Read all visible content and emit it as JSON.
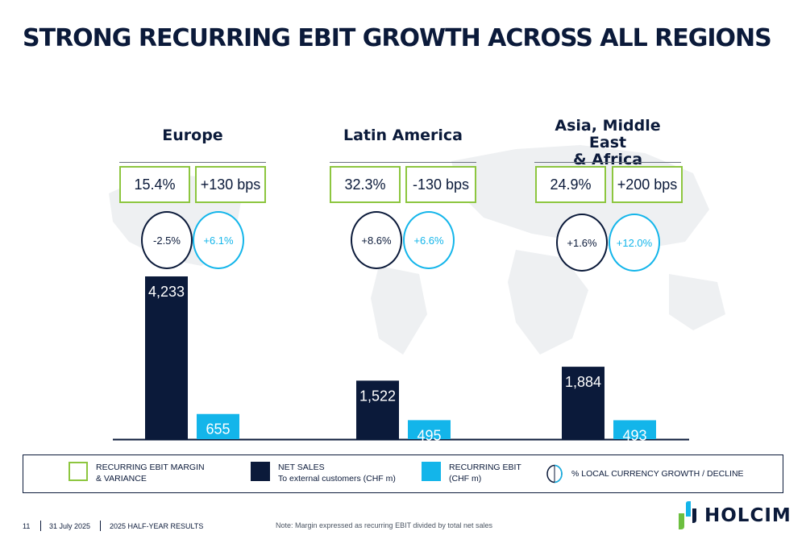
{
  "title": "STRONG RECURRING EBIT GROWTH ACROSS ALL REGIONS",
  "regions": [
    {
      "name": "Europe",
      "margin": "15.4%",
      "variance": "+130 bps",
      "net_sales_growth": "-2.5%",
      "ebit_growth": "+6.1%",
      "net_sales_label": "4,233",
      "ebit_label": "655"
    },
    {
      "name": "Latin America",
      "margin": "32.3%",
      "variance": "-130 bps",
      "net_sales_growth": "+8.6%",
      "ebit_growth": "+6.6%",
      "net_sales_label": "1,522",
      "ebit_label": "495"
    },
    {
      "name_line1": "Asia, Middle East",
      "name_line2": "& Africa",
      "margin": "24.9%",
      "variance": "+200 bps",
      "net_sales_growth": "+1.6%",
      "ebit_growth": "+12.0%",
      "net_sales_label": "1,884",
      "ebit_label": "493"
    }
  ],
  "chart_data": {
    "type": "bar",
    "categories": [
      "Europe",
      "Latin America",
      "Asia, Middle East & Africa"
    ],
    "series": [
      {
        "name": "NET SALES",
        "values": [
          4233,
          1522,
          1884
        ],
        "color": "#0b1a3a"
      },
      {
        "name": "RECURRING EBIT",
        "values": [
          655,
          495,
          493
        ],
        "color": "#13b5ea"
      }
    ],
    "title": "STRONG RECURRING EBIT GROWTH ACROSS ALL REGIONS",
    "xlabel": "",
    "ylabel": "",
    "note": "Note: Margin expressed as recurring EBIT divided by total net sales"
  },
  "legend": {
    "margin_line1": "RECURRING EBIT MARGIN",
    "margin_line2": "& VARIANCE",
    "net_sales_line1": "NET SALES",
    "net_sales_line2": "To external customers (CHF m)",
    "ebit_line1": "RECURRING EBIT",
    "ebit_line2": "(CHF m)",
    "growth_label": "% LOCAL CURRENCY GROWTH / DECLINE"
  },
  "footer": {
    "page": "11",
    "date": "31 July 2025",
    "report": "2025 HALF-YEAR RESULTS",
    "note": "Note: Margin expressed as recurring EBIT divided by total net sales"
  },
  "logo": {
    "text": "HOLCIM"
  },
  "colors": {
    "navy": "#0b1a3a",
    "cyan": "#13b5ea",
    "green": "#8dc63f",
    "logo_green": "#6cbf3f"
  }
}
